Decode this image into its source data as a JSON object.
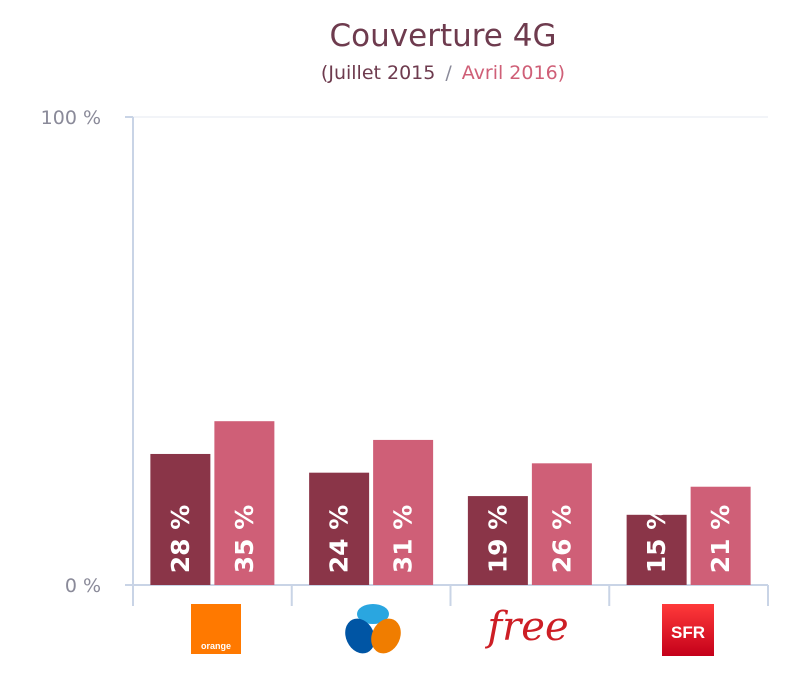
{
  "chart_data": {
    "type": "bar",
    "title": "Couverture 4G",
    "subtitle": {
      "open": "(",
      "period_1": "Juillet 2015",
      "separator": "/",
      "period_2": "Avril 2016",
      "close": ")"
    },
    "categories": [
      "Orange",
      "Bouygues Telecom",
      "Free",
      "SFR"
    ],
    "series": [
      {
        "name": "Juillet 2015",
        "values": [
          28,
          24,
          19,
          15
        ],
        "labels": [
          "28 %",
          "24 %",
          "19 %",
          "15 %"
        ]
      },
      {
        "name": "Avril 2016",
        "values": [
          35,
          31,
          26,
          21
        ],
        "labels": [
          "35 %",
          "31 %",
          "26 %",
          "21 %"
        ]
      }
    ],
    "ylim": [
      0,
      100
    ],
    "y_ticks": [
      {
        "value": 0,
        "label": "0 %"
      },
      {
        "value": 100,
        "label": "100 %"
      }
    ],
    "grid": "top line only",
    "colors": {
      "series_1": "#8a3548",
      "series_2": "#cf5f77",
      "title": "#6e3b4e",
      "subtitle_1": "#6e3b4e",
      "subtitle_2": "#cf5f77",
      "axis": "#c9d4e6",
      "tick_text": "#8a8a99"
    },
    "logos": [
      {
        "name": "orange-logo",
        "text": "orange",
        "color": "#ff7900"
      },
      {
        "name": "bouygues-logo",
        "text": "",
        "color": "#0055a4"
      },
      {
        "name": "free-logo",
        "text": "free",
        "color": "#cd1e25"
      },
      {
        "name": "sfr-logo",
        "text": "SFR",
        "color": "#e2001a"
      }
    ]
  }
}
